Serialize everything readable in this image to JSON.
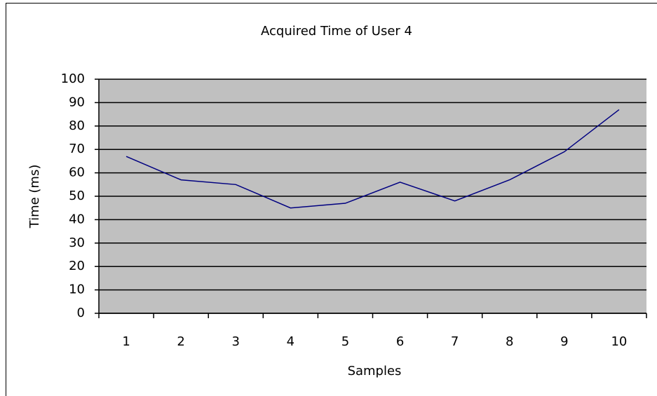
{
  "chart_data": {
    "type": "line",
    "title": "Acquired Time of User 4",
    "x_label": "Samples",
    "y_label": "Time (ms)",
    "categories": [
      "1",
      "2",
      "3",
      "4",
      "5",
      "6",
      "7",
      "8",
      "9",
      "10"
    ],
    "series": [
      {
        "name": "User 4",
        "color": "#000080",
        "values": [
          67,
          57,
          55,
          45,
          47,
          56,
          48,
          57,
          69,
          87
        ]
      }
    ],
    "ylim": [
      0,
      100
    ],
    "yticks": [
      0,
      10,
      20,
      30,
      40,
      50,
      60,
      70,
      80,
      90,
      100
    ],
    "grid": true,
    "plot_background": "#c0c0c0"
  }
}
